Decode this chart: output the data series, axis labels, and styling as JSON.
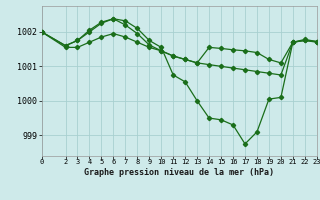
{
  "background_color": "#ceeaea",
  "grid_color": "#a8d0d0",
  "line_color": "#1a6e1a",
  "title": "Graphe pression niveau de la mer (hPa)",
  "xlim": [
    0,
    23
  ],
  "ylim": [
    998.4,
    1002.75
  ],
  "yticks": [
    999,
    1000,
    1001,
    1002
  ],
  "xticks": [
    0,
    2,
    3,
    4,
    5,
    6,
    7,
    8,
    9,
    10,
    11,
    12,
    13,
    14,
    15,
    16,
    17,
    18,
    19,
    20,
    21,
    22,
    23
  ],
  "series": [
    {
      "x": [
        0,
        2,
        3,
        4,
        5,
        6,
        7,
        8,
        9,
        10,
        11,
        12,
        13,
        14,
        15,
        16,
        17,
        18,
        19,
        20,
        21,
        22,
        23
      ],
      "y": [
        1002.0,
        1001.55,
        1001.55,
        1001.7,
        1001.85,
        1001.95,
        1001.85,
        1001.7,
        1001.55,
        1001.45,
        1001.3,
        1001.2,
        1001.1,
        1001.05,
        1001.0,
        1000.95,
        1000.9,
        1000.85,
        1000.8,
        1000.75,
        1001.7,
        1001.75,
        1001.7
      ]
    },
    {
      "x": [
        0,
        2,
        3,
        4,
        5,
        6,
        7,
        8,
        9,
        10,
        11,
        12,
        13,
        14,
        15,
        16,
        17,
        18,
        19,
        20,
        21,
        22,
        23
      ],
      "y": [
        1002.0,
        1001.6,
        1001.75,
        1002.0,
        1002.25,
        1002.38,
        1002.32,
        1002.1,
        1001.75,
        1001.55,
        1000.75,
        1000.55,
        1000.0,
        999.5,
        999.45,
        999.3,
        998.75,
        999.1,
        1000.05,
        1000.1,
        1001.7,
        1001.78,
        1001.72
      ]
    },
    {
      "x": [
        0,
        2,
        3,
        4,
        5,
        6,
        7,
        8,
        9,
        10,
        11,
        12,
        13,
        14,
        15,
        16,
        17,
        18,
        19,
        20,
        21,
        22,
        23
      ],
      "y": [
        1002.0,
        1001.6,
        1001.75,
        1002.05,
        1002.28,
        1002.38,
        1002.2,
        1001.95,
        1001.62,
        1001.45,
        1001.3,
        1001.2,
        1001.1,
        1001.55,
        1001.52,
        1001.48,
        1001.45,
        1001.4,
        1001.2,
        1001.1,
        1001.7,
        1001.75,
        1001.72
      ]
    }
  ]
}
